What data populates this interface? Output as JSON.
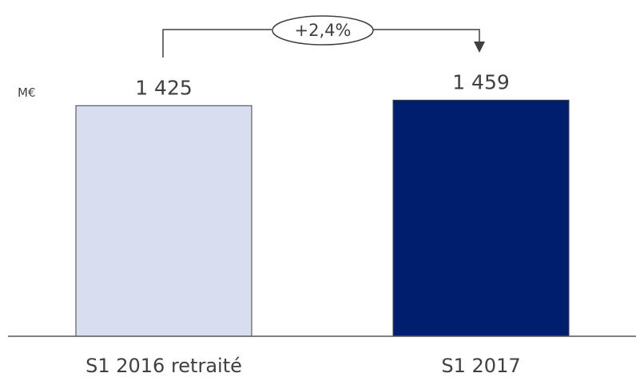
{
  "chart_data": {
    "type": "bar",
    "unit": "M€",
    "categories": [
      "S1 2016 retraité",
      "S1 2017"
    ],
    "values": [
      1425,
      1459
    ],
    "value_labels": [
      "1 425",
      "1 459"
    ],
    "colors": [
      "#D9DDF0",
      "#001E6E"
    ],
    "change_label": "+2,4%",
    "ylim": [
      0,
      1530
    ]
  }
}
